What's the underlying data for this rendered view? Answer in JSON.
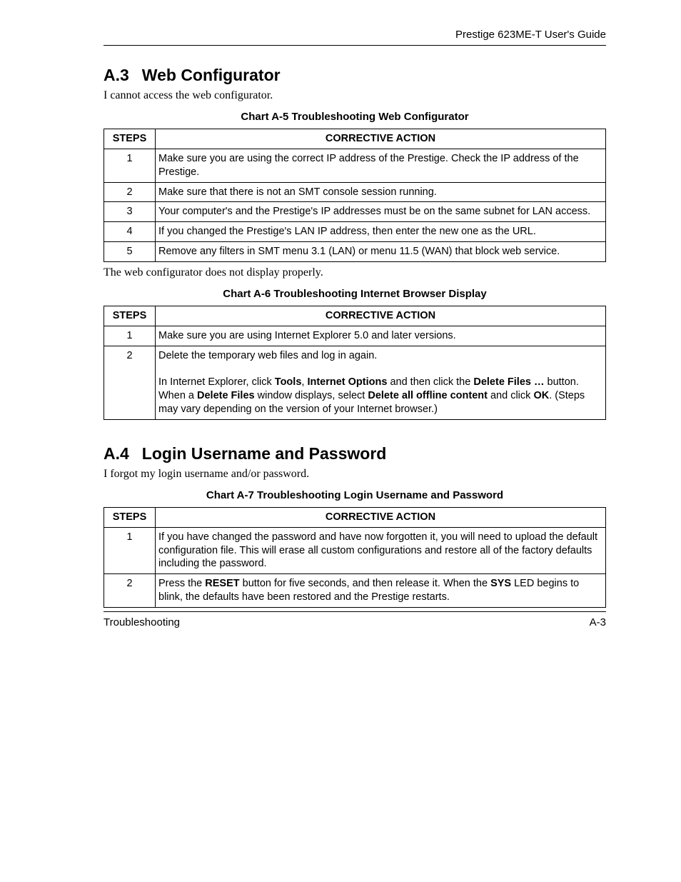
{
  "header": {
    "right": "Prestige 623ME-T User's Guide"
  },
  "sections": [
    {
      "num": "A.3",
      "title": "Web Configurator",
      "intro": "I cannot access the web configurator.",
      "chart_title": "Chart A-5 Troubleshooting Web Configurator",
      "columns": [
        "STEPS",
        "CORRECTIVE ACTION"
      ],
      "rows": [
        {
          "step": "1",
          "action": [
            {
              "t": "Make sure you are using the correct IP address of the Prestige. Check the IP address of the Prestige."
            }
          ]
        },
        {
          "step": "2",
          "action": [
            {
              "t": "Make sure that there is not an SMT console session running."
            }
          ]
        },
        {
          "step": "3",
          "action": [
            {
              "t": "Your computer's and the Prestige's IP addresses must be on the same subnet for LAN access."
            }
          ]
        },
        {
          "step": "4",
          "action": [
            {
              "t": "If you changed the Prestige's LAN IP address, then enter the new one as the URL."
            }
          ]
        },
        {
          "step": "5",
          "action": [
            {
              "t": "Remove any filters in SMT menu 3.1 (LAN) or menu 11.5 (WAN) that block web service."
            }
          ]
        }
      ],
      "post_text": "The web configurator does not display properly.",
      "chart2_title": "Chart A-6 Troubleshooting Internet Browser Display",
      "columns2": [
        "STEPS",
        "CORRECTIVE ACTION"
      ],
      "rows2": [
        {
          "step": "1",
          "action": [
            {
              "t": "Make sure you are using Internet Explorer 5.0 and later versions."
            }
          ]
        },
        {
          "step": "2",
          "action": [
            {
              "t": "Delete the temporary web files and log in again."
            },
            {
              "br": true
            },
            {
              "br": true
            },
            {
              "t": "In Internet Explorer, click "
            },
            {
              "t": "Tools",
              "b": true
            },
            {
              "t": ", "
            },
            {
              "t": "Internet Options",
              "b": true
            },
            {
              "t": " and then click the "
            },
            {
              "t": "Delete Files …",
              "b": true
            },
            {
              "t": " button. When a "
            },
            {
              "t": "Delete Files",
              "b": true
            },
            {
              "t": " window displays, select "
            },
            {
              "t": "Delete all offline content",
              "b": true
            },
            {
              "t": " and click "
            },
            {
              "t": "OK",
              "b": true
            },
            {
              "t": ". (Steps may vary depending on the version of your Internet browser.)"
            }
          ]
        }
      ]
    },
    {
      "num": "A.4",
      "title": "Login Username and Password",
      "intro": "I forgot my login username and/or password.",
      "chart_title": "Chart A-7 Troubleshooting Login Username and Password",
      "columns": [
        "STEPS",
        "CORRECTIVE ACTION"
      ],
      "rows": [
        {
          "step": "1",
          "action": [
            {
              "t": "If you have changed the password and have now forgotten it, you will need to upload the default configuration file. This will erase all custom configurations and restore all of the factory defaults including the password."
            }
          ]
        },
        {
          "step": "2",
          "action": [
            {
              "t": "Press the "
            },
            {
              "t": "RESET",
              "b": true
            },
            {
              "t": " button for five seconds, and then release it. When the "
            },
            {
              "t": "SYS",
              "b": true
            },
            {
              "t": " LED begins to blink, the defaults have been restored and the Prestige restarts."
            }
          ]
        }
      ]
    }
  ],
  "footer": {
    "left": "Troubleshooting",
    "right": "A-3"
  }
}
